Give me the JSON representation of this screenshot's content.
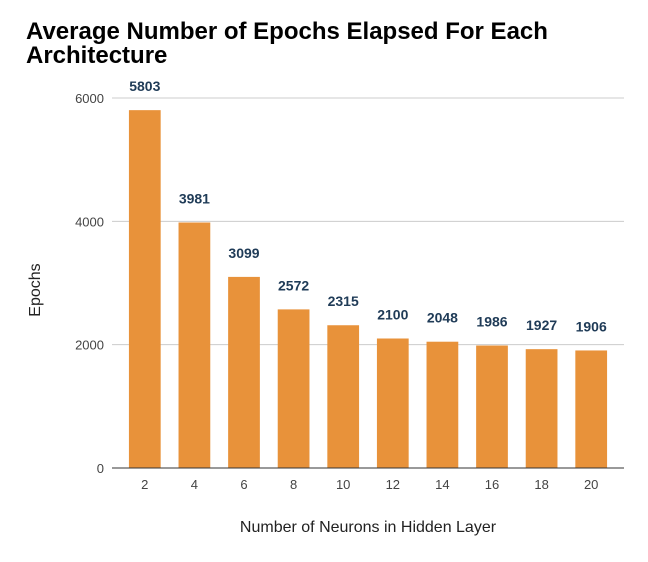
{
  "chart_data": {
    "type": "bar",
    "title": "Average Number of Epochs Elapsed For Each Architecture",
    "xlabel": "Number of Neurons in Hidden Layer",
    "ylabel": "Epochs",
    "categories": [
      "2",
      "4",
      "6",
      "8",
      "10",
      "12",
      "14",
      "16",
      "18",
      "20"
    ],
    "values": [
      5803,
      3981,
      3099,
      2572,
      2315,
      2100,
      2048,
      1986,
      1927,
      1906
    ],
    "data_labels": [
      "5803",
      "3981",
      "3099",
      "2572",
      "2315",
      "2100",
      "2048",
      "1986",
      "1927",
      "1906"
    ],
    "ylim": [
      0,
      6000
    ],
    "yticks": [
      0,
      2000,
      4000,
      6000
    ],
    "ytick_labels": [
      "0",
      "2000",
      "4000",
      "6000"
    ],
    "grid": true,
    "legend": "none",
    "bar_color": "#e8923a",
    "grid_color": "#cccccc",
    "axis_color": "#333333"
  }
}
